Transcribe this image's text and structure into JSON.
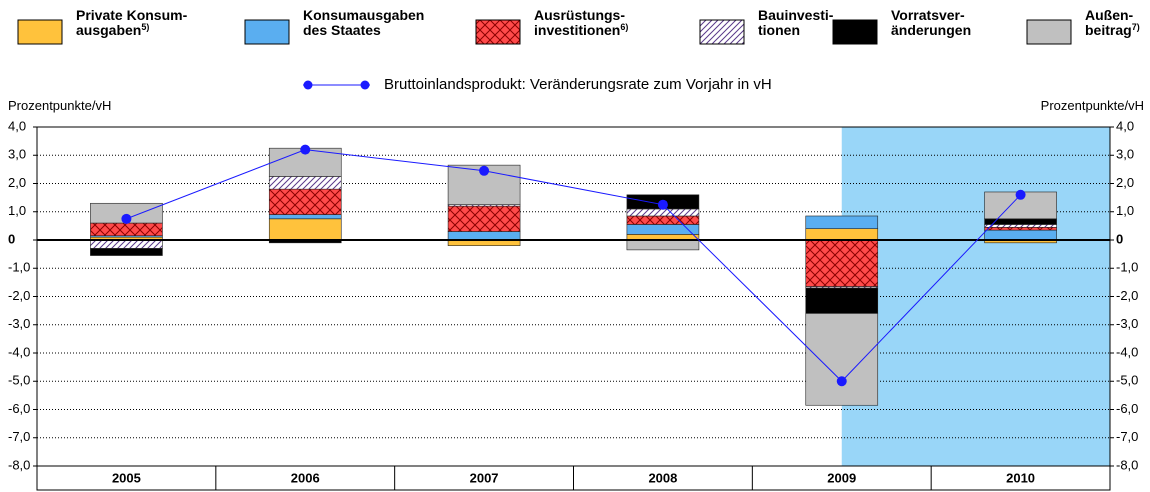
{
  "chart_data": {
    "type": "stacked_bar",
    "y_label": "Prozentpunkte/vH",
    "y2_label": "Prozentpunkte/vH",
    "categories": [
      "2005",
      "2006",
      "2007",
      "2008",
      "2009",
      "2010"
    ],
    "series": [
      {
        "name": "Private Konsum-\nausgaben",
        "note": "5)",
        "color": "#ffc23c",
        "values": [
          0.1,
          0.75,
          -0.2,
          0.2,
          0.4,
          -0.1
        ]
      },
      {
        "name": "Konsumausgaben\ndes Staates",
        "color": "#5aaef0",
        "values": [
          0.05,
          0.15,
          0.3,
          0.35,
          0.45,
          0.35
        ]
      },
      {
        "name": "Ausrüstungs-\ninvestitionen",
        "note": "6)",
        "color": "#ff4a4a",
        "pattern": "cross",
        "values": [
          0.45,
          0.9,
          0.9,
          0.3,
          -1.65,
          0.1
        ]
      },
      {
        "name": "Bauinvesti-\ntionen",
        "color": "#ffffff",
        "pattern": "hatch",
        "values": [
          -0.3,
          0.45,
          0.05,
          0.25,
          -0.05,
          0.1
        ]
      },
      {
        "name": "Vorratsver-\nänderungen",
        "color": "#000000",
        "values": [
          -0.25,
          -0.1,
          0,
          0.5,
          -0.9,
          0.2
        ]
      },
      {
        "name": "Außen-\nbeitrag",
        "note": "7)",
        "color": "#c0c0c0",
        "values": [
          0.7,
          1.0,
          1.4,
          -0.35,
          -3.25,
          0.95
        ]
      }
    ],
    "line": {
      "name": "Bruttoinlandsprodukt: Veränderungsrate zum Vorjahr in vH",
      "color": "#1a1aff",
      "values": [
        0.75,
        3.2,
        2.45,
        1.25,
        -5.0,
        1.6
      ]
    },
    "ylim": [
      -8,
      4
    ],
    "yticks": [
      {
        "value": 4,
        "label": "4,0"
      },
      {
        "value": 3,
        "label": "3,0"
      },
      {
        "value": 2,
        "label": "2,0"
      },
      {
        "value": 1,
        "label": "1,0"
      },
      0,
      {
        "value": -1,
        "label": "-1,0"
      },
      {
        "value": -2,
        "label": "-2,0"
      },
      {
        "value": -3,
        "label": "-3,0"
      },
      {
        "value": -4,
        "label": "-4,0"
      },
      {
        "value": -5,
        "label": "-5,0"
      },
      {
        "value": -6,
        "label": "-6,0"
      },
      {
        "value": -7,
        "label": "-7,0"
      },
      {
        "value": -8,
        "label": "-8,0"
      }
    ],
    "grid": true
  }
}
